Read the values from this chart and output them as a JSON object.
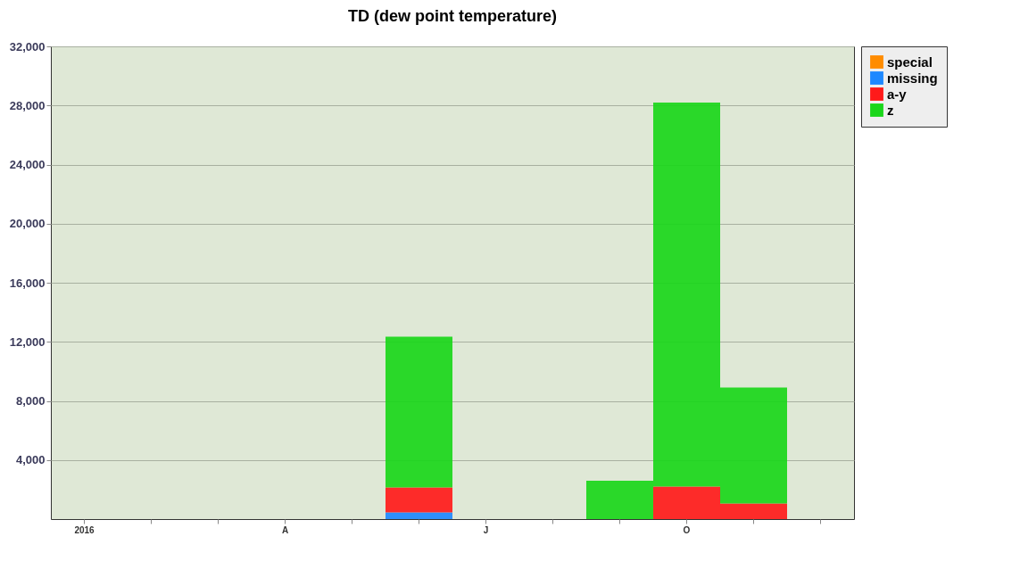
{
  "chart_data": {
    "type": "bar",
    "title": "TD (dew point temperature)",
    "stacked": true,
    "categories": [
      "2016",
      null,
      null,
      "A",
      null,
      null,
      "J",
      null,
      null,
      "O",
      null,
      null
    ],
    "series": [
      {
        "name": "special",
        "color": "#ff8c00",
        "values": [
          null,
          null,
          null,
          null,
          null,
          null,
          null,
          null,
          null,
          null,
          null,
          null
        ]
      },
      {
        "name": "missing",
        "color": "#1e88ff",
        "values": [
          null,
          null,
          null,
          null,
          null,
          450,
          null,
          null,
          null,
          null,
          null,
          null
        ]
      },
      {
        "name": "a-y",
        "color": "#ff1a1a",
        "values": [
          null,
          null,
          null,
          null,
          null,
          1700,
          null,
          null,
          null,
          2200,
          1050,
          null
        ]
      },
      {
        "name": "z",
        "color": "#1ad61a",
        "values": [
          null,
          null,
          null,
          null,
          null,
          10200,
          null,
          null,
          2600,
          26000,
          7850,
          null
        ]
      }
    ],
    "ylim": [
      0,
      32000
    ],
    "yticks": [
      {
        "value": 4000,
        "label": "4,000"
      },
      {
        "value": 8000,
        "label": "8,000"
      },
      {
        "value": 12000,
        "label": "12,000"
      },
      {
        "value": 16000,
        "label": "16,000"
      },
      {
        "value": 20000,
        "label": "20,000"
      },
      {
        "value": 24000,
        "label": "24,000"
      },
      {
        "value": 28000,
        "label": "28,000"
      },
      {
        "value": 32000,
        "label": "32,000"
      }
    ],
    "grid": "y",
    "legend": "right"
  }
}
